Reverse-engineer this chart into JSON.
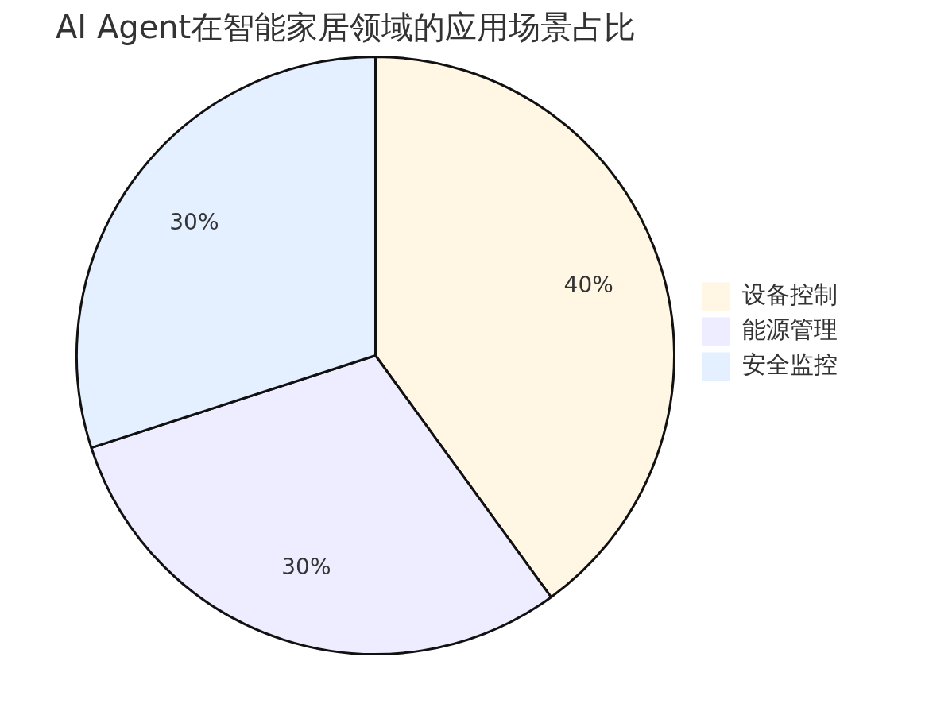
{
  "chart_data": {
    "type": "pie",
    "title": "AI Agent在智能家居领域的应用场景占比",
    "categories": [
      "设备控制",
      "能源管理",
      "安全监控"
    ],
    "values": [
      40,
      30,
      30
    ],
    "value_labels": [
      "40%",
      "30%",
      "30%"
    ],
    "colors": [
      "#fff6e4",
      "#eeedff",
      "#e4efff"
    ],
    "legend": "right"
  }
}
